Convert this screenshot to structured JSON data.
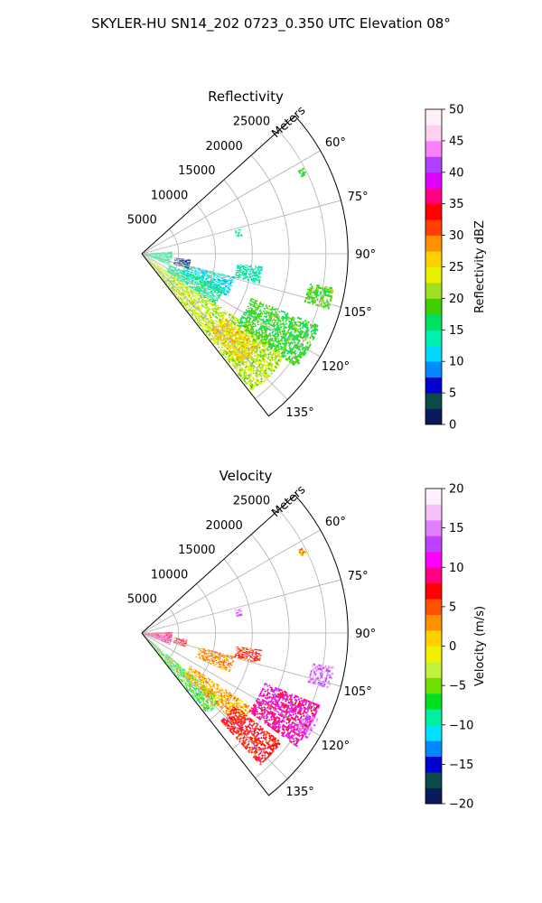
{
  "figure": {
    "title": "SKYLER-HU  SN14_202  0723_0.350 UTC Elevation 08°"
  },
  "chart_data": [
    {
      "type": "heatmap",
      "subtype": "polar-sector",
      "title": "Reflectivity",
      "radial_axis_label": "Meters",
      "radial_ticks": [
        5000,
        10000,
        15000,
        20000,
        25000
      ],
      "radial_tick_labels": [
        "5000",
        "10000",
        "15000",
        "20000",
        "25000"
      ],
      "radial_range": [
        0,
        28000
      ],
      "azimuth_range_deg": [
        48,
        142
      ],
      "azimuth_ticks_deg": [
        60,
        75,
        90,
        105,
        120,
        135
      ],
      "azimuth_tick_labels": [
        "60°",
        "75°",
        "90°",
        "105°",
        "120°",
        "135°"
      ],
      "grid": true,
      "colorbar": {
        "label": "Reflectivity dBZ",
        "min": 0,
        "max": 50,
        "ticks": [
          0,
          5,
          10,
          15,
          20,
          25,
          30,
          35,
          40,
          45,
          50
        ],
        "tick_labels": [
          "0",
          "5",
          "10",
          "15",
          "20",
          "25",
          "30",
          "35",
          "40",
          "45",
          "50"
        ],
        "colormap": [
          "#0a1a5a",
          "#0a4a4a",
          "#0000c8",
          "#0088ff",
          "#00d8ff",
          "#00f0b0",
          "#00e060",
          "#40d000",
          "#a0e020",
          "#e8f000",
          "#ffd000",
          "#ff9000",
          "#ff4000",
          "#ff0000",
          "#ff0080",
          "#e000ff",
          "#b040ff",
          "#ff80ff",
          "#ffd0f0",
          "#fff0f8"
        ]
      },
      "regions": [
        {
          "az": [
            124,
            141
          ],
          "r": [
            1000,
            24000
          ],
          "value": 22
        },
        {
          "az": [
            128,
            138
          ],
          "r": [
            14000,
            20000
          ],
          "value": 26
        },
        {
          "az": [
            112,
            126
          ],
          "r": [
            16000,
            26000
          ],
          "value": 18
        },
        {
          "az": [
            104,
            116
          ],
          "r": [
            6000,
            13000
          ],
          "value": 12
        },
        {
          "az": [
            96,
            104
          ],
          "r": [
            13000,
            16500
          ],
          "value": 14
        },
        {
          "az": [
            112,
            124
          ],
          "r": [
            4000,
            12000
          ],
          "value": 15
        },
        {
          "az": [
            97,
            108
          ],
          "r": [
            4500,
            6500
          ],
          "value": 4
        },
        {
          "az": [
            100,
            106
          ],
          "r": [
            23000,
            26500
          ],
          "value": 19
        },
        {
          "az": [
            86,
            112
          ],
          "r": [
            400,
            4000
          ],
          "value": 15
        },
        {
          "az": [
            76,
            80
          ],
          "r": [
            13000,
            13800
          ],
          "value": 14
        },
        {
          "az": [
            62,
            64
          ],
          "r": [
            24000,
            24800
          ],
          "value": 18
        }
      ]
    },
    {
      "type": "heatmap",
      "subtype": "polar-sector",
      "title": "Velocity",
      "radial_axis_label": "Meters",
      "radial_ticks": [
        5000,
        10000,
        15000,
        20000,
        25000
      ],
      "radial_tick_labels": [
        "5000",
        "10000",
        "15000",
        "20000",
        "25000"
      ],
      "radial_range": [
        0,
        28000
      ],
      "azimuth_range_deg": [
        48,
        142
      ],
      "azimuth_ticks_deg": [
        60,
        75,
        90,
        105,
        120,
        135
      ],
      "azimuth_tick_labels": [
        "60°",
        "75°",
        "90°",
        "105°",
        "120°",
        "135°"
      ],
      "grid": true,
      "colorbar": {
        "label": "Velocity (m/s)",
        "min": -20,
        "max": 20,
        "ticks": [
          -20,
          -15,
          -10,
          -5,
          0,
          5,
          10,
          15,
          20
        ],
        "tick_labels": [
          "−20",
          "−15",
          "−10",
          "−5",
          "0",
          "5",
          "10",
          "15",
          "20"
        ],
        "colormap": [
          "#0a1a5a",
          "#0a4a4a",
          "#0000d0",
          "#0088ff",
          "#00e0ff",
          "#00f0a0",
          "#00e020",
          "#70e000",
          "#c0f040",
          "#f0f000",
          "#ffd000",
          "#ff9000",
          "#ff5000",
          "#ff0000",
          "#ff0080",
          "#ff00ff",
          "#c040ff",
          "#e080ff",
          "#f8c0f8",
          "#fff0fc"
        ]
      },
      "regions": [
        {
          "az": [
            130,
            141
          ],
          "r": [
            1000,
            14000
          ],
          "value": -6
        },
        {
          "az": [
            124,
            134
          ],
          "r": [
            8000,
            18000
          ],
          "value": 2
        },
        {
          "az": [
            128,
            138
          ],
          "r": [
            16000,
            24000
          ],
          "value": 7
        },
        {
          "az": [
            112,
            126
          ],
          "r": [
            18000,
            26000
          ],
          "value": 10
        },
        {
          "az": [
            104,
            114
          ],
          "r": [
            8000,
            13000
          ],
          "value": 3
        },
        {
          "az": [
            98,
            104
          ],
          "r": [
            13000,
            16500
          ],
          "value": 6
        },
        {
          "az": [
            116,
            122
          ],
          "r": [
            24500,
            26500
          ],
          "value": 14
        },
        {
          "az": [
            88,
            112
          ],
          "r": [
            400,
            4000
          ],
          "value": 9
        },
        {
          "az": [
            98,
            108
          ],
          "r": [
            4500,
            6200
          ],
          "value": 7
        },
        {
          "az": [
            100,
            106
          ],
          "r": [
            23500,
            26500
          ],
          "value": 15
        },
        {
          "az": [
            76,
            80
          ],
          "r": [
            13000,
            13800
          ],
          "value": 15
        },
        {
          "az": [
            62,
            64
          ],
          "r": [
            24000,
            24800
          ],
          "value": 2
        }
      ]
    }
  ]
}
